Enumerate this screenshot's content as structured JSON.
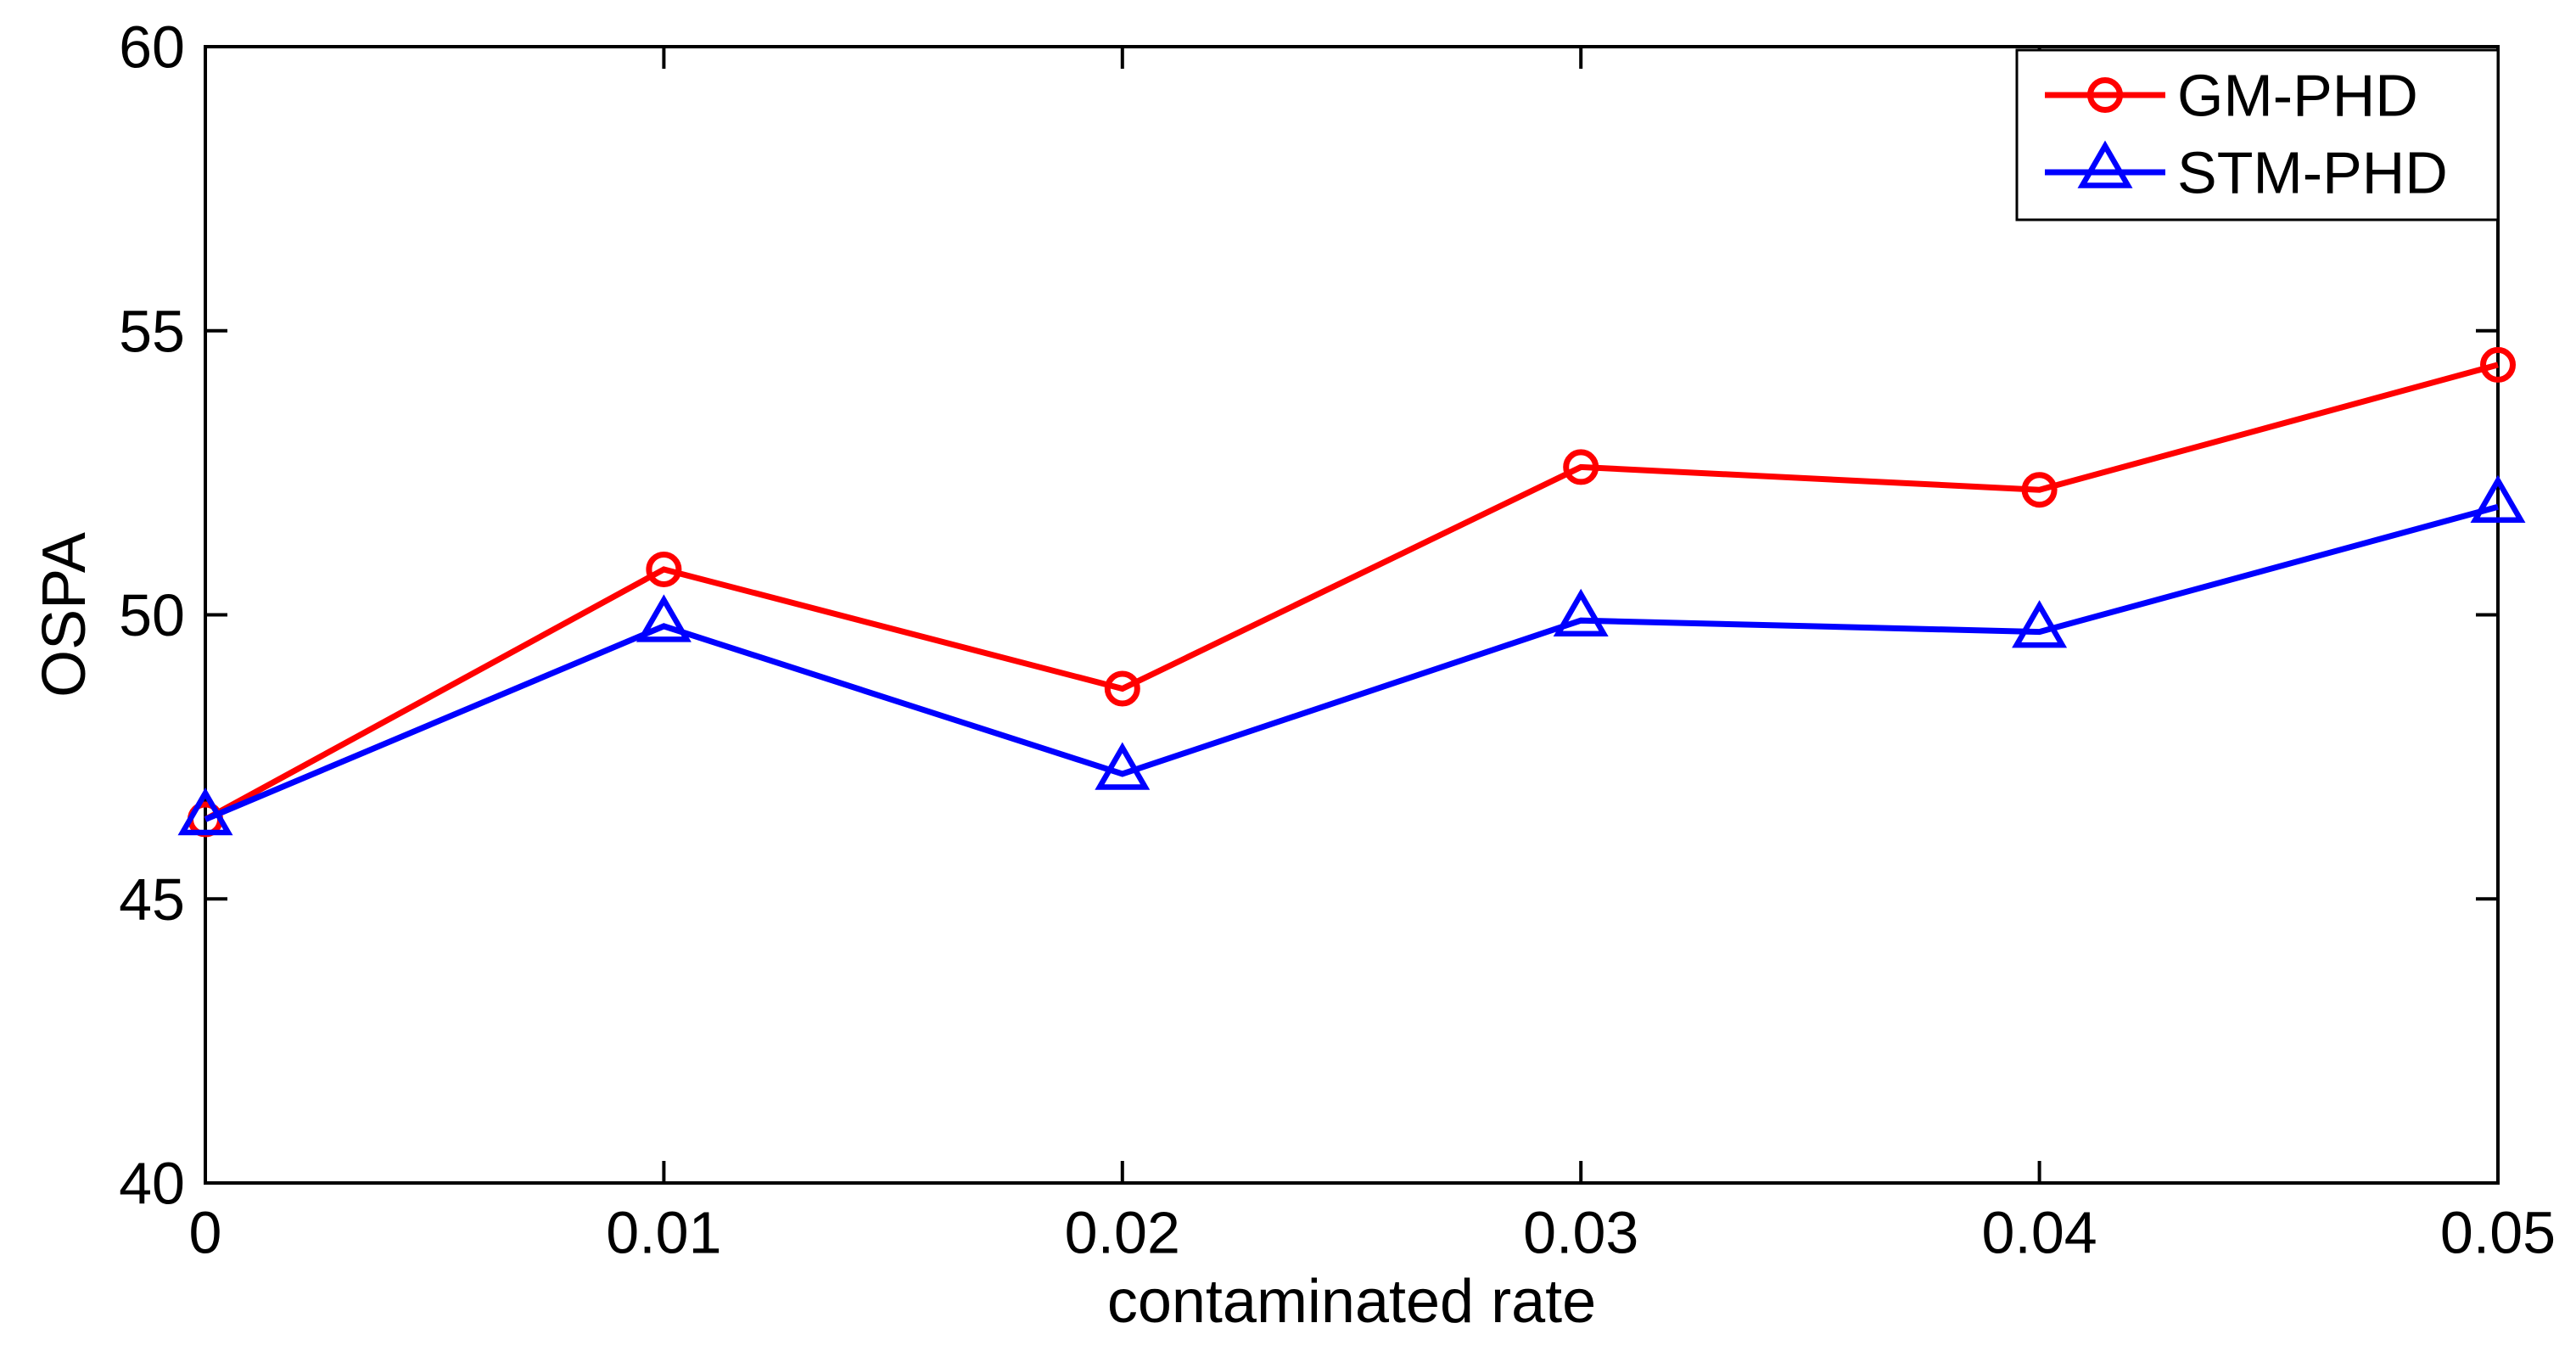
{
  "chart_data": {
    "type": "line",
    "title": "",
    "xlabel": "contaminated rate",
    "ylabel": "OSPA",
    "xlim": [
      0,
      0.05
    ],
    "ylim": [
      40,
      60
    ],
    "x": [
      0,
      0.01,
      0.02,
      0.03,
      0.04,
      0.05
    ],
    "xtick_labels": [
      "0",
      "0.01",
      "0.02",
      "0.03",
      "0.04",
      "0.05"
    ],
    "yticks": [
      40,
      45,
      50,
      55,
      60
    ],
    "ytick_labels": [
      "40",
      "45",
      "50",
      "55",
      "60"
    ],
    "grid": false,
    "legend_position": "northeast-inside",
    "background_color": "#ffffff",
    "axis_color": "#000000",
    "series": [
      {
        "name": "GM-PHD",
        "color": "#ff0000",
        "marker": "circle",
        "values": [
          46.4,
          50.8,
          48.7,
          52.6,
          52.2,
          54.4
        ]
      },
      {
        "name": "STM-PHD",
        "color": "#0000ff",
        "marker": "triangle-up",
        "values": [
          46.4,
          49.8,
          47.2,
          49.9,
          49.7,
          51.9
        ]
      }
    ]
  }
}
